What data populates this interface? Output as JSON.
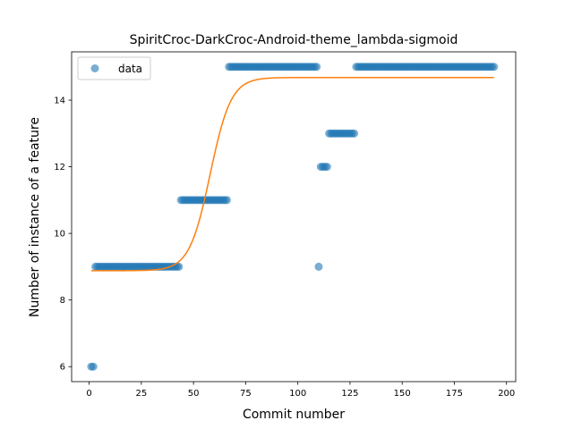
{
  "chart_data": {
    "type": "scatter",
    "title": "SpiritCroc-DarkCroc-Android-theme_lambda-sigmoid",
    "xlabel": "Commit number",
    "ylabel": "Number of instance of a feature",
    "xlim": [
      -8.4,
      204.4
    ],
    "ylim": [
      5.55,
      15.45
    ],
    "xticks": [
      0,
      25,
      50,
      75,
      100,
      125,
      150,
      175,
      200
    ],
    "yticks": [
      6,
      8,
      10,
      12,
      14
    ],
    "legend": {
      "position": "upper-left",
      "entries": [
        "data"
      ]
    },
    "colors": {
      "data": "#1f77b4",
      "fit": "#ff7f0e"
    },
    "series": [
      {
        "name": "data",
        "kind": "scatter",
        "segments": [
          {
            "x_from": 1,
            "x_to": 2,
            "y": 6
          },
          {
            "x_from": 3,
            "x_to": 43,
            "y": 9
          },
          {
            "x_from": 44,
            "x_to": 66,
            "y": 11
          },
          {
            "x_from": 67,
            "x_to": 109,
            "y": 15
          },
          {
            "x_from": 110,
            "x_to": 110,
            "y": 9
          },
          {
            "x_from": 111,
            "x_to": 114,
            "y": 12
          },
          {
            "x_from": 115,
            "x_to": 127,
            "y": 13
          },
          {
            "x_from": 128,
            "x_to": 194,
            "y": 15
          }
        ]
      },
      {
        "kind": "line",
        "model": "sigmoid",
        "params": {
          "lower": 8.88,
          "upper": 14.68,
          "midpoint": 58,
          "steepness": 0.2
        },
        "x_range": [
          1,
          194
        ]
      }
    ]
  }
}
